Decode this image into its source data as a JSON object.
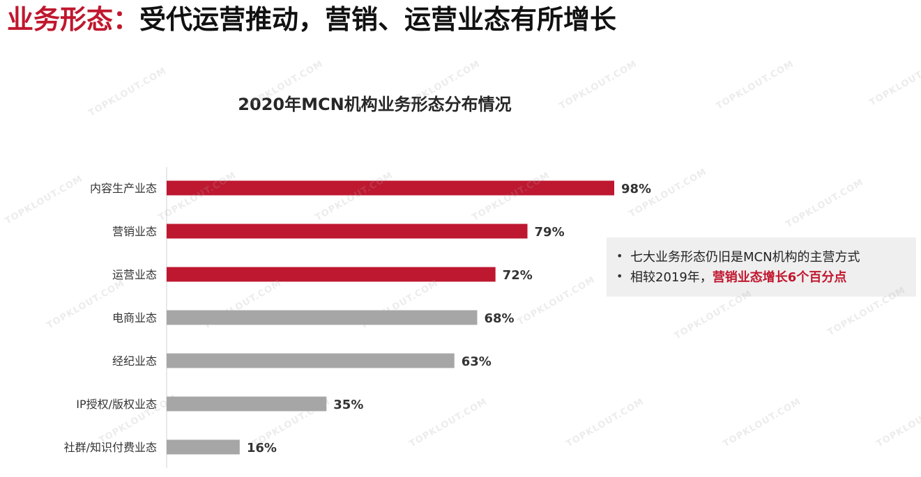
{
  "headline": {
    "accent": "业务形态：",
    "main": "受代运营推动，营销、运营业态有所增长"
  },
  "chart_data": {
    "type": "bar",
    "orientation": "horizontal",
    "title": "2020年MCN机构业务形态分布情况",
    "categories": [
      "内容生产业态",
      "营销业态",
      "运营业态",
      "电商业态",
      "经纪业态",
      "IP授权/版权业态",
      "社群/知识付费业态"
    ],
    "values": [
      98,
      79,
      72,
      68,
      63,
      35,
      16
    ],
    "value_labels": [
      "98%",
      "79%",
      "72%",
      "68%",
      "63%",
      "35%",
      "16%"
    ],
    "bar_colors": [
      "#be1730",
      "#be1730",
      "#be1730",
      "#a6a6a6",
      "#a6a6a6",
      "#a6a6a6",
      "#a6a6a6"
    ],
    "xlim": [
      0,
      100
    ],
    "xlabel": "",
    "ylabel": "",
    "grid": false,
    "legend": "none"
  },
  "notes": {
    "bullet": "•",
    "line1": "七大业务形态仍旧是MCN机构的主营方式",
    "line2_prefix": "相较2019年，",
    "line2_highlight": "营销业态增长6个百分点"
  },
  "watermark": {
    "text": "TOPKLOUT.COM"
  },
  "colors": {
    "accent": "#c0172e",
    "bar_highlight": "#be1730",
    "bar_neutral": "#a6a6a6",
    "note_bg": "#efefef"
  }
}
